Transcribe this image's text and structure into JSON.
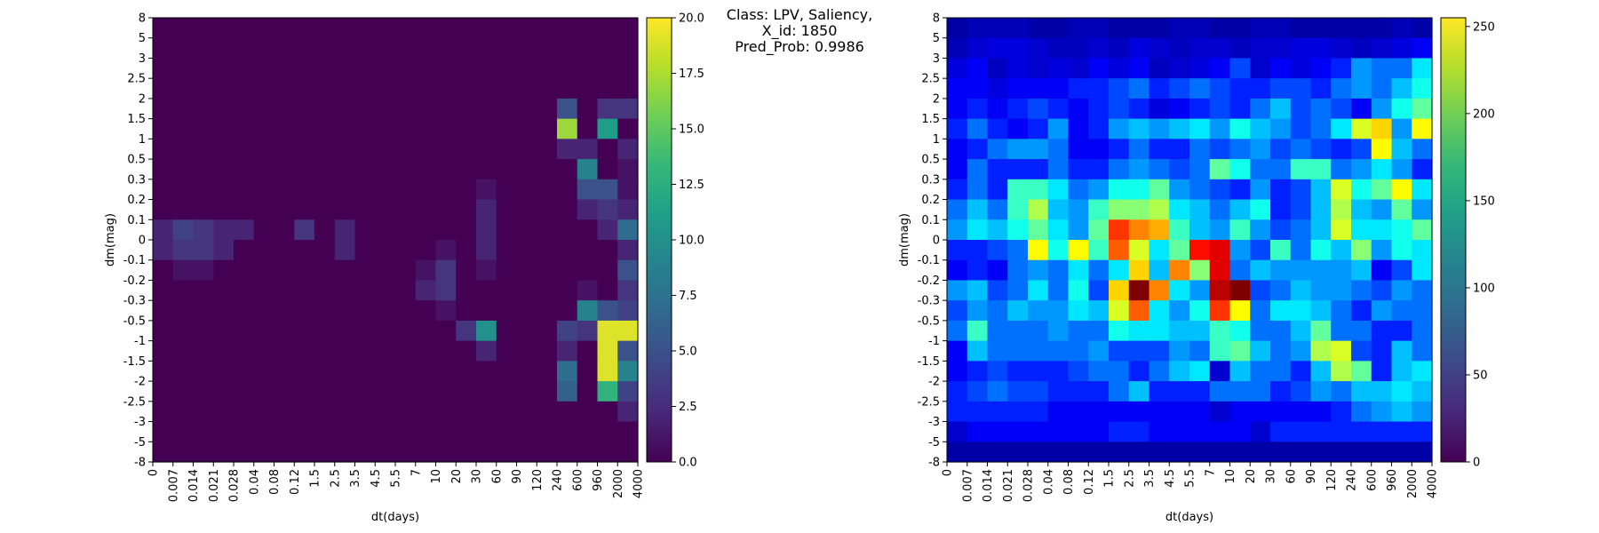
{
  "figure": {
    "title_lines": [
      "Class: LPV, Saliency,",
      "X_id: 1850",
      "Pred_Prob: 0.9986"
    ]
  },
  "chart_data": [
    {
      "type": "heatmap",
      "title": "",
      "xlabel": "dt(days)",
      "ylabel": "dm(mag)",
      "x_edges": [
        "0",
        "0.007",
        "0.014",
        "0.021",
        "0.028",
        "0.04",
        "0.08",
        "0.12",
        "1.5",
        "2.5",
        "3.5",
        "4.5",
        "5.5",
        "7",
        "10",
        "20",
        "30",
        "60",
        "90",
        "120",
        "240",
        "600",
        "960",
        "2000",
        "4000"
      ],
      "y_edges": [
        "8",
        "5",
        "3",
        "2.5",
        "2",
        "1.5",
        "1",
        "0.5",
        "0.3",
        "0.2",
        "0.1",
        "0",
        "-0.1",
        "-0.2",
        "-0.3",
        "-0.5",
        "-1",
        "-1.5",
        "-2",
        "-2.5",
        "-3",
        "-5",
        "-8"
      ],
      "colormap": "viridis",
      "vmin": 0,
      "vmax": 20,
      "colorbar_ticks": [
        0.0,
        2.5,
        5.0,
        7.5,
        10.0,
        12.5,
        15.0,
        17.5,
        20.0
      ],
      "colorbar_tick_labels": [
        "0.0",
        "2.5",
        "5.0",
        "7.5",
        "10.0",
        "12.5",
        "15.0",
        "17.5",
        "20.0"
      ],
      "grid": false,
      "values": [
        [
          0,
          0,
          0,
          0,
          0,
          0,
          0,
          0,
          0,
          0,
          0,
          0,
          0,
          0,
          0,
          0,
          0,
          0,
          0,
          0,
          0,
          0,
          0,
          0
        ],
        [
          0,
          0,
          0,
          0,
          0,
          0,
          0,
          0,
          0,
          0,
          0,
          0,
          0,
          0,
          0,
          0,
          0,
          0,
          0,
          0,
          0,
          0,
          0,
          0
        ],
        [
          0,
          0,
          0,
          0,
          0,
          0,
          0,
          0,
          0,
          0,
          0,
          0,
          0,
          0,
          0,
          0,
          0,
          0,
          0,
          0,
          0,
          0,
          0,
          0
        ],
        [
          0,
          0,
          0,
          0,
          0,
          0,
          0,
          0,
          0,
          0,
          0,
          0,
          0,
          0,
          0,
          0,
          0,
          0,
          0,
          0,
          0,
          0,
          0,
          0
        ],
        [
          0,
          0,
          0,
          0,
          0,
          0,
          0,
          0,
          0,
          0,
          0,
          0,
          0,
          0,
          0,
          0,
          0,
          0,
          0,
          0,
          5,
          0,
          3,
          3
        ],
        [
          0,
          0,
          0,
          0,
          0,
          0,
          0,
          0,
          0,
          0,
          0,
          0,
          0,
          0,
          0,
          0,
          0,
          0,
          0,
          0,
          17,
          0,
          11,
          0
        ],
        [
          0,
          0,
          0,
          0,
          0,
          0,
          0,
          0,
          0,
          0,
          0,
          0,
          0,
          0,
          0,
          0,
          0,
          0,
          0,
          0,
          2,
          2,
          0,
          2
        ],
        [
          0,
          0,
          0,
          0,
          0,
          0,
          0,
          0,
          0,
          0,
          0,
          0,
          0,
          0,
          0,
          0,
          0,
          0,
          0,
          0,
          0,
          9,
          0,
          1
        ],
        [
          0,
          0,
          0,
          0,
          0,
          0,
          0,
          0,
          0,
          0,
          0,
          0,
          0,
          0,
          0,
          0,
          1,
          0,
          0,
          0,
          0,
          5,
          5,
          1
        ],
        [
          0,
          0,
          0,
          0,
          0,
          0,
          0,
          0,
          0,
          0,
          0,
          0,
          0,
          0,
          0,
          0,
          2,
          0,
          0,
          0,
          0,
          2,
          3,
          2
        ],
        [
          2,
          4,
          3,
          2,
          2,
          0,
          0,
          3,
          0,
          2,
          0,
          0,
          0,
          0,
          0,
          0,
          2,
          0,
          0,
          0,
          0,
          0,
          2,
          7
        ],
        [
          2,
          3,
          3,
          2,
          0,
          0,
          0,
          0,
          0,
          2,
          0,
          0,
          0,
          0,
          1,
          0,
          2,
          0,
          0,
          0,
          0,
          0,
          0,
          2
        ],
        [
          0,
          1,
          1,
          0,
          0,
          0,
          0,
          0,
          0,
          0,
          0,
          0,
          0,
          1,
          3,
          0,
          1,
          0,
          0,
          0,
          0,
          0,
          0,
          5
        ],
        [
          0,
          0,
          0,
          0,
          0,
          0,
          0,
          0,
          0,
          0,
          0,
          0,
          0,
          2,
          3,
          0,
          0,
          0,
          0,
          0,
          0,
          1,
          0,
          3
        ],
        [
          0,
          0,
          0,
          0,
          0,
          0,
          0,
          0,
          0,
          0,
          0,
          0,
          0,
          0,
          1,
          0,
          0,
          0,
          0,
          0,
          0,
          9,
          5,
          4
        ],
        [
          0,
          0,
          0,
          0,
          0,
          0,
          0,
          0,
          0,
          0,
          0,
          0,
          0,
          0,
          0,
          3,
          10,
          0,
          0,
          0,
          4,
          3,
          19,
          19
        ],
        [
          0,
          0,
          0,
          0,
          0,
          0,
          0,
          0,
          0,
          0,
          0,
          0,
          0,
          0,
          0,
          0,
          2,
          0,
          0,
          0,
          2,
          0,
          19,
          5
        ],
        [
          0,
          0,
          0,
          0,
          0,
          0,
          0,
          0,
          0,
          0,
          0,
          0,
          0,
          0,
          0,
          0,
          0,
          0,
          0,
          0,
          7,
          0,
          19,
          9
        ],
        [
          0,
          0,
          0,
          0,
          0,
          0,
          0,
          0,
          0,
          0,
          0,
          0,
          0,
          0,
          0,
          0,
          0,
          0,
          0,
          0,
          6,
          0,
          13,
          4
        ],
        [
          0,
          0,
          0,
          0,
          0,
          0,
          0,
          0,
          0,
          0,
          0,
          0,
          0,
          0,
          0,
          0,
          0,
          0,
          0,
          0,
          0,
          0,
          0,
          2
        ],
        [
          0,
          0,
          0,
          0,
          0,
          0,
          0,
          0,
          0,
          0,
          0,
          0,
          0,
          0,
          0,
          0,
          0,
          0,
          0,
          0,
          0,
          0,
          0,
          0
        ],
        [
          0,
          0,
          0,
          0,
          0,
          0,
          0,
          0,
          0,
          0,
          0,
          0,
          0,
          0,
          0,
          0,
          0,
          0,
          0,
          0,
          0,
          0,
          0,
          0
        ]
      ]
    },
    {
      "type": "heatmap",
      "title": "",
      "xlabel": "dt(days)",
      "ylabel": "dm(mag)",
      "x_edges": [
        "0",
        "0.007",
        "0.014",
        "0.021",
        "0.028",
        "0.04",
        "0.08",
        "0.12",
        "1.5",
        "2.5",
        "3.5",
        "4.5",
        "5.5",
        "7",
        "10",
        "20",
        "30",
        "60",
        "90",
        "120",
        "240",
        "600",
        "960",
        "2000",
        "4000"
      ],
      "y_edges": [
        "8",
        "5",
        "3",
        "2.5",
        "2",
        "1.5",
        "1",
        "0.5",
        "0.3",
        "0.2",
        "0.1",
        "0",
        "-0.1",
        "-0.2",
        "-0.3",
        "-0.5",
        "-1",
        "-1.5",
        "-2",
        "-2.5",
        "-3",
        "-5",
        "-8"
      ],
      "colormap": "jet",
      "heatmap_colormap": "jet",
      "colorbar_colormap": "viridis",
      "vmin": 0,
      "vmax": 255,
      "colorbar_ticks": [
        0,
        50,
        100,
        150,
        200,
        250
      ],
      "colorbar_tick_labels": [
        "0",
        "50",
        "100",
        "150",
        "200",
        "250"
      ],
      "grid": false,
      "values": [
        [
          10,
          14,
          14,
          14,
          10,
          10,
          14,
          14,
          10,
          10,
          10,
          14,
          14,
          10,
          10,
          14,
          14,
          10,
          10,
          10,
          10,
          10,
          14,
          10
        ],
        [
          14,
          20,
          24,
          24,
          20,
          16,
          16,
          20,
          16,
          24,
          20,
          16,
          20,
          20,
          16,
          20,
          20,
          24,
          24,
          20,
          16,
          20,
          24,
          30
        ],
        [
          24,
          30,
          16,
          24,
          20,
          24,
          20,
          30,
          24,
          30,
          16,
          20,
          24,
          30,
          50,
          20,
          30,
          24,
          30,
          40,
          70,
          60,
          60,
          90
        ],
        [
          30,
          30,
          24,
          30,
          30,
          30,
          40,
          40,
          50,
          60,
          40,
          50,
          60,
          50,
          40,
          40,
          50,
          50,
          40,
          60,
          70,
          60,
          80,
          100
        ],
        [
          30,
          40,
          30,
          40,
          50,
          40,
          30,
          40,
          50,
          40,
          24,
          30,
          40,
          50,
          40,
          60,
          80,
          50,
          60,
          50,
          30,
          70,
          100,
          120
        ],
        [
          40,
          60,
          40,
          30,
          40,
          70,
          30,
          40,
          70,
          80,
          70,
          80,
          90,
          70,
          100,
          80,
          70,
          50,
          60,
          90,
          150,
          170,
          70,
          160
        ],
        [
          30,
          40,
          60,
          70,
          70,
          60,
          30,
          30,
          40,
          60,
          40,
          40,
          60,
          50,
          60,
          70,
          50,
          60,
          50,
          40,
          50,
          160,
          80,
          60
        ],
        [
          30,
          60,
          40,
          40,
          40,
          60,
          40,
          40,
          60,
          70,
          60,
          50,
          60,
          120,
          100,
          60,
          60,
          110,
          110,
          60,
          70,
          90,
          70,
          40
        ],
        [
          40,
          60,
          40,
          110,
          110,
          90,
          60,
          70,
          100,
          100,
          120,
          70,
          60,
          50,
          40,
          70,
          40,
          50,
          80,
          150,
          100,
          120,
          160,
          90
        ],
        [
          60,
          80,
          60,
          110,
          140,
          80,
          70,
          110,
          130,
          130,
          140,
          90,
          80,
          60,
          80,
          100,
          40,
          50,
          80,
          140,
          80,
          70,
          120,
          70
        ],
        [
          70,
          90,
          80,
          100,
          120,
          90,
          70,
          120,
          210,
          190,
          180,
          110,
          80,
          70,
          110,
          70,
          50,
          60,
          80,
          150,
          90,
          90,
          100,
          120
        ],
        [
          40,
          40,
          50,
          60,
          160,
          100,
          160,
          110,
          200,
          150,
          90,
          120,
          220,
          230,
          70,
          50,
          110,
          60,
          100,
          80,
          130,
          70,
          100,
          90
        ],
        [
          30,
          40,
          30,
          60,
          70,
          60,
          90,
          60,
          90,
          170,
          80,
          190,
          130,
          230,
          60,
          80,
          70,
          70,
          70,
          70,
          80,
          30,
          50,
          90
        ],
        [
          70,
          80,
          50,
          60,
          90,
          60,
          100,
          50,
          170,
          255,
          190,
          90,
          70,
          240,
          255,
          50,
          60,
          80,
          70,
          70,
          60,
          50,
          70,
          60
        ],
        [
          50,
          70,
          60,
          80,
          70,
          70,
          90,
          80,
          150,
          200,
          90,
          70,
          100,
          210,
          160,
          60,
          90,
          90,
          80,
          60,
          40,
          70,
          60,
          60
        ],
        [
          60,
          110,
          60,
          60,
          60,
          70,
          60,
          60,
          100,
          90,
          90,
          80,
          80,
          110,
          100,
          60,
          60,
          80,
          120,
          60,
          60,
          40,
          40,
          60
        ],
        [
          30,
          80,
          60,
          60,
          60,
          60,
          60,
          70,
          50,
          50,
          50,
          70,
          60,
          110,
          120,
          80,
          60,
          70,
          140,
          150,
          50,
          40,
          80,
          60
        ],
        [
          30,
          40,
          50,
          40,
          40,
          40,
          50,
          60,
          60,
          40,
          60,
          80,
          90,
          20,
          80,
          60,
          60,
          40,
          80,
          140,
          120,
          40,
          80,
          90
        ],
        [
          40,
          50,
          60,
          50,
          50,
          40,
          40,
          40,
          60,
          80,
          40,
          40,
          40,
          60,
          60,
          60,
          40,
          50,
          70,
          60,
          80,
          80,
          90,
          80
        ],
        [
          40,
          40,
          40,
          40,
          40,
          30,
          30,
          30,
          30,
          30,
          30,
          30,
          30,
          20,
          30,
          30,
          30,
          30,
          30,
          40,
          60,
          70,
          80,
          70
        ],
        [
          20,
          30,
          30,
          30,
          30,
          30,
          30,
          30,
          40,
          40,
          30,
          30,
          30,
          30,
          30,
          20,
          40,
          40,
          40,
          40,
          40,
          40,
          40,
          40
        ],
        [
          10,
          10,
          10,
          10,
          10,
          10,
          10,
          10,
          10,
          10,
          10,
          10,
          10,
          10,
          10,
          10,
          10,
          10,
          10,
          10,
          10,
          10,
          10,
          10
        ]
      ]
    }
  ]
}
